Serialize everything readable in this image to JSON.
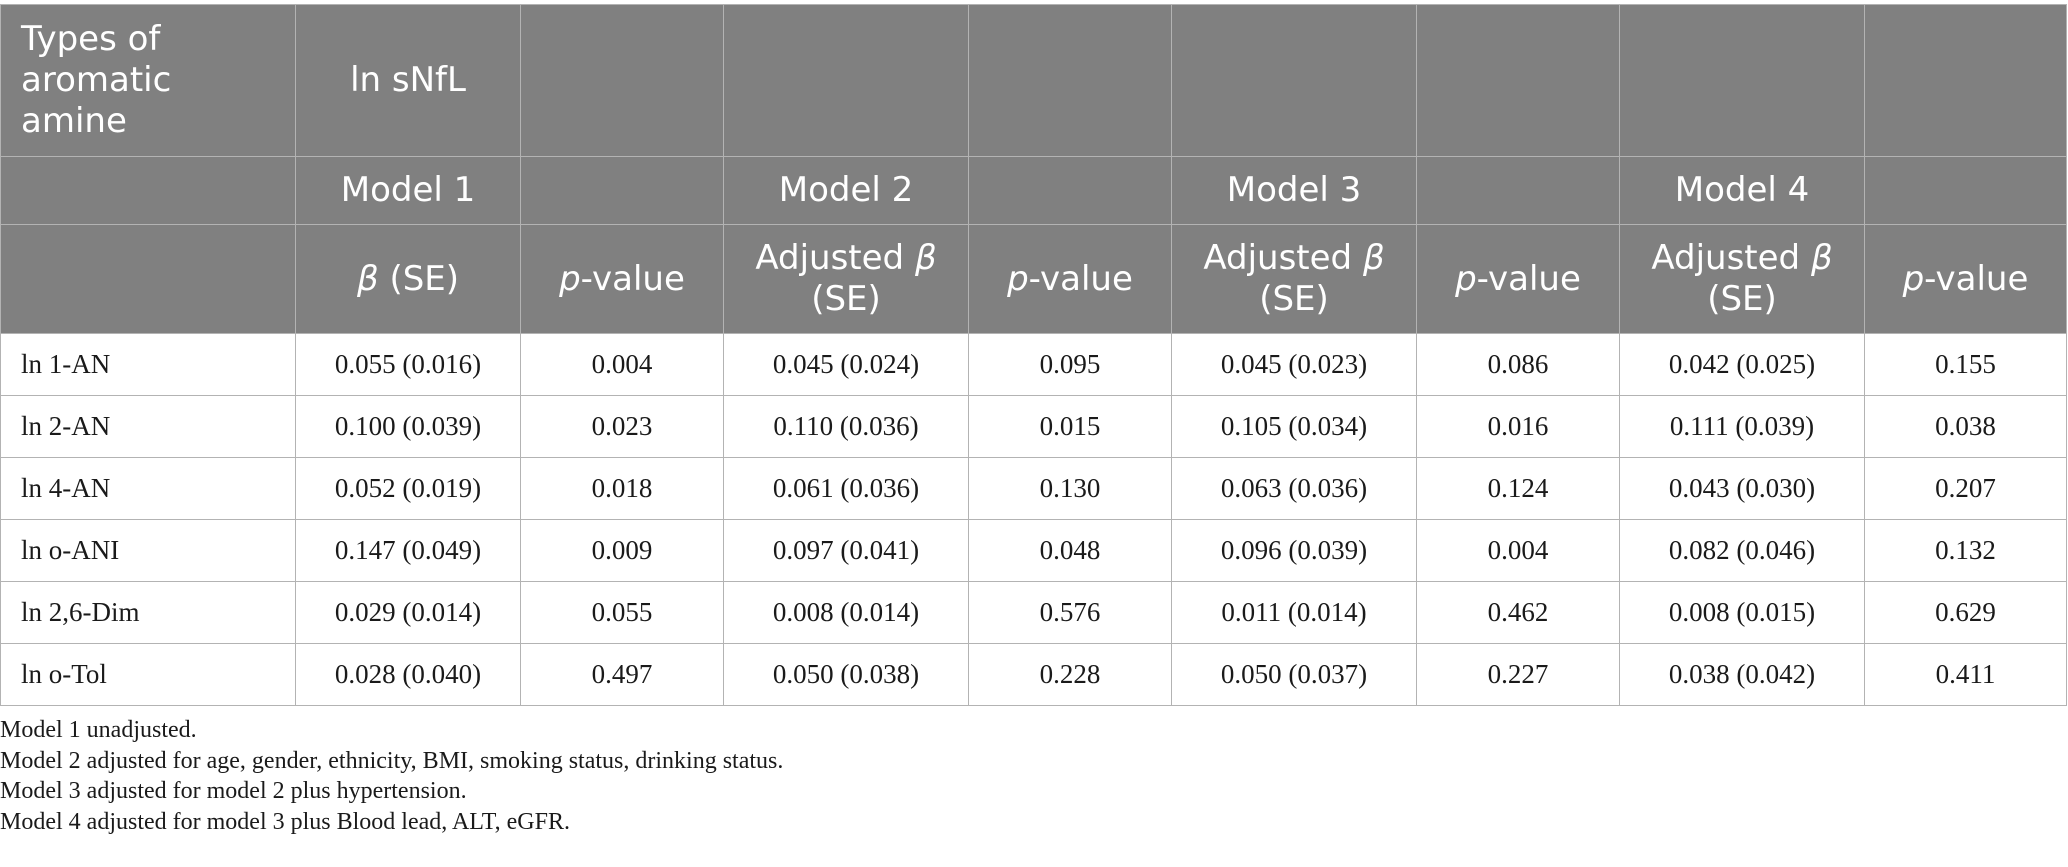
{
  "header": {
    "row1": {
      "types_label": "Types of aromatic amine",
      "outcome_label": "ln sNfL"
    },
    "row2": {
      "model1": "Model 1",
      "model2": "Model 2",
      "model3": "Model 3",
      "model4": "Model 4"
    },
    "row3": {
      "beta_prefix": "β",
      "beta_suffix": " (SE)",
      "adjusted_prefix": "Adjusted ",
      "adjusted_beta": "β",
      "adjusted_suffix": "(SE)",
      "p_prefix": "p",
      "p_suffix": "-value"
    }
  },
  "rows": [
    {
      "label": "ln 1-AN",
      "m1_beta": "0.055 (0.016)",
      "m1_p": "0.004",
      "m2_beta": "0.045 (0.024)",
      "m2_p": "0.095",
      "m3_beta": "0.045 (0.023)",
      "m3_p": "0.086",
      "m4_beta": "0.042 (0.025)",
      "m4_p": "0.155"
    },
    {
      "label": "ln 2-AN",
      "m1_beta": "0.100 (0.039)",
      "m1_p": "0.023",
      "m2_beta": "0.110 (0.036)",
      "m2_p": "0.015",
      "m3_beta": "0.105 (0.034)",
      "m3_p": "0.016",
      "m4_beta": "0.111 (0.039)",
      "m4_p": "0.038"
    },
    {
      "label": "ln 4-AN",
      "m1_beta": "0.052 (0.019)",
      "m1_p": "0.018",
      "m2_beta": "0.061 (0.036)",
      "m2_p": "0.130",
      "m3_beta": "0.063 (0.036)",
      "m3_p": "0.124",
      "m4_beta": "0.043 (0.030)",
      "m4_p": "0.207"
    },
    {
      "label": "ln o-ANI",
      "m1_beta": "0.147 (0.049)",
      "m1_p": "0.009",
      "m2_beta": "0.097 (0.041)",
      "m2_p": "0.048",
      "m3_beta": "0.096 (0.039)",
      "m3_p": "0.004",
      "m4_beta": "0.082 (0.046)",
      "m4_p": "0.132"
    },
    {
      "label": "ln 2,6-Dim",
      "m1_beta": "0.029 (0.014)",
      "m1_p": "0.055",
      "m2_beta": "0.008 (0.014)",
      "m2_p": "0.576",
      "m3_beta": "0.011 (0.014)",
      "m3_p": "0.462",
      "m4_beta": "0.008 (0.015)",
      "m4_p": "0.629"
    },
    {
      "label": "ln o-Tol",
      "m1_beta": "0.028 (0.040)",
      "m1_p": "0.497",
      "m2_beta": "0.050 (0.038)",
      "m2_p": "0.228",
      "m3_beta": "0.050 (0.037)",
      "m3_p": "0.227",
      "m4_beta": "0.038 (0.042)",
      "m4_p": "0.411"
    }
  ],
  "notes": [
    "Model 1 unadjusted.",
    "Model 2 adjusted for age, gender, ethnicity, BMI, smoking status, drinking status.",
    "Model 3 adjusted for model 2 plus hypertension.",
    "Model 4 adjusted for model 3 plus Blood lead, ALT, eGFR."
  ],
  "colors": {
    "header_bg": "#808080",
    "header_text": "#ffffff",
    "grid": "#b3b3b3"
  }
}
